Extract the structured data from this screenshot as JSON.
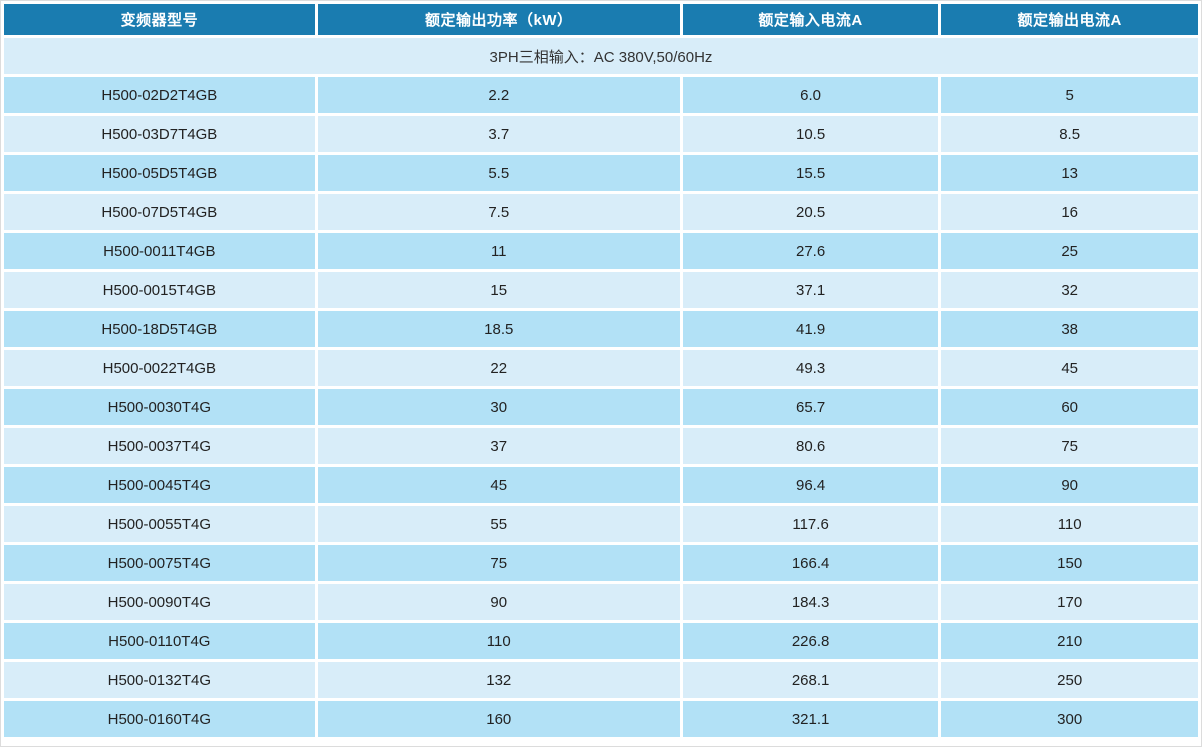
{
  "table": {
    "columns": [
      "变频器型号",
      "额定输出功率（kW）",
      "额定输入电流A",
      "额定输出电流A"
    ],
    "subheader": "3PH三相输入：AC 380V,50/60Hz",
    "rows": [
      {
        "model": "H500-02D2T4GB",
        "power": "2.2",
        "input_current": "6.0",
        "output_current": "5"
      },
      {
        "model": "H500-03D7T4GB",
        "power": "3.7",
        "input_current": "10.5",
        "output_current": "8.5"
      },
      {
        "model": "H500-05D5T4GB",
        "power": "5.5",
        "input_current": "15.5",
        "output_current": "13"
      },
      {
        "model": "H500-07D5T4GB",
        "power": "7.5",
        "input_current": "20.5",
        "output_current": "16"
      },
      {
        "model": "H500-0011T4GB",
        "power": "11",
        "input_current": "27.6",
        "output_current": "25"
      },
      {
        "model": "H500-0015T4GB",
        "power": "15",
        "input_current": "37.1",
        "output_current": "32"
      },
      {
        "model": "H500-18D5T4GB",
        "power": "18.5",
        "input_current": "41.9",
        "output_current": "38"
      },
      {
        "model": "H500-0022T4GB",
        "power": "22",
        "input_current": "49.3",
        "output_current": "45"
      },
      {
        "model": "H500-0030T4G",
        "power": "30",
        "input_current": "65.7",
        "output_current": "60"
      },
      {
        "model": "H500-0037T4G",
        "power": "37",
        "input_current": "80.6",
        "output_current": "75"
      },
      {
        "model": "H500-0045T4G",
        "power": "45",
        "input_current": "96.4",
        "output_current": "90"
      },
      {
        "model": "H500-0055T4G",
        "power": "55",
        "input_current": "117.6",
        "output_current": "110"
      },
      {
        "model": "H500-0075T4G",
        "power": "75",
        "input_current": "166.4",
        "output_current": "150"
      },
      {
        "model": "H500-0090T4G",
        "power": "90",
        "input_current": "184.3",
        "output_current": "170"
      },
      {
        "model": "H500-0110T4G",
        "power": "110",
        "input_current": "226.8",
        "output_current": "210"
      },
      {
        "model": "H500-0132T4G",
        "power": "132",
        "input_current": "268.1",
        "output_current": "250"
      },
      {
        "model": "H500-0160T4G",
        "power": "160",
        "input_current": "321.1",
        "output_current": "300"
      }
    ],
    "colors": {
      "header_bg": "#1a7cb0",
      "header_text": "#ffffff",
      "row_dark": "#b2e1f6",
      "row_light": "#d8edf9",
      "cell_text": "#222222"
    }
  }
}
